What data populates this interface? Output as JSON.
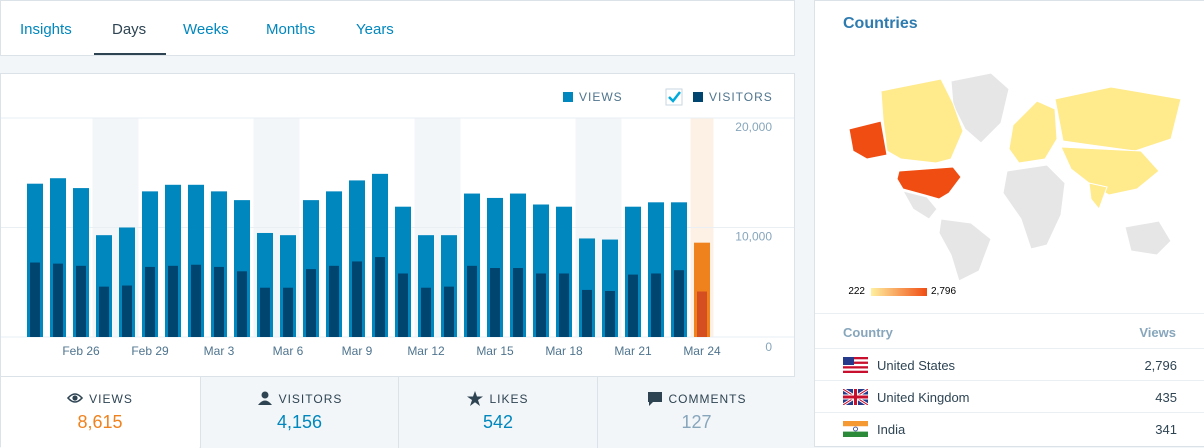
{
  "tabs": [
    "Insights",
    "Days",
    "Weeks",
    "Months",
    "Years"
  ],
  "chart_data": {
    "type": "bar",
    "categories": [
      null,
      null,
      "Feb 26",
      null,
      null,
      "Feb 29",
      null,
      null,
      "Mar 3",
      null,
      null,
      "Mar 6",
      null,
      null,
      "Mar 9",
      null,
      null,
      "Mar 12",
      null,
      null,
      "Mar 15",
      null,
      null,
      "Mar 18",
      null,
      null,
      "Mar 21",
      null,
      null,
      "Mar 24"
    ],
    "series": [
      {
        "name": "VIEWS",
        "color": "#0087be",
        "highlight_color": "#f0821e",
        "values": [
          14000,
          14500,
          13600,
          9300,
          10000,
          13300,
          13900,
          13900,
          13300,
          12500,
          9500,
          9300,
          12500,
          13300,
          14300,
          14900,
          11900,
          9300,
          9300,
          13100,
          12700,
          13100,
          12100,
          11900,
          9000,
          8900,
          11900,
          12300,
          12300,
          8615
        ]
      },
      {
        "name": "VISITORS",
        "color": "#00456f",
        "highlight_color": "#d54e21",
        "values": [
          6800,
          6700,
          6500,
          4600,
          4700,
          6400,
          6500,
          6600,
          6400,
          6000,
          4500,
          4500,
          6200,
          6500,
          6900,
          7300,
          5800,
          4500,
          4600,
          6500,
          6300,
          6300,
          5800,
          5800,
          4300,
          4200,
          5700,
          5800,
          6100,
          4156
        ]
      }
    ],
    "ylim": [
      0,
      20000
    ],
    "yticks": [
      0,
      {
        "value": 10000,
        "label": "10,000"
      },
      {
        "value": 20000,
        "label": "20,000"
      }
    ],
    "grid": true
  },
  "summary": [
    {
      "label": "VIEWS",
      "value": "8,615"
    },
    {
      "label": "VISITORS",
      "value": "4,156"
    },
    {
      "label": "LIKES",
      "value": "542"
    },
    {
      "label": "COMMENTS",
      "value": "127"
    }
  ],
  "countries": {
    "title": "Countries",
    "scale_min": "222",
    "scale_max": "2,796",
    "header": [
      "Country",
      "Views"
    ],
    "rows": [
      [
        "United States",
        "2,796"
      ],
      [
        "United Kingdom",
        "435"
      ],
      [
        "India",
        "341"
      ]
    ]
  }
}
